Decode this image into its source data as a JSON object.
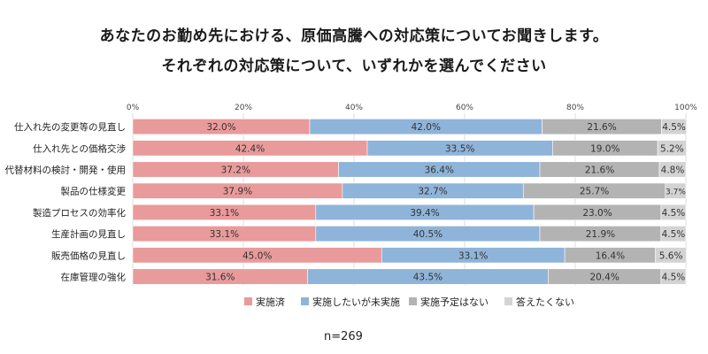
{
  "title_lines": [
    "あなたのお勤め先における、原価高騰への対応策についてお聞きします。",
    "それぞれの対応策について、いずれかを選んでください"
  ],
  "sample_size": "n=269",
  "chart_data": {
    "type": "bar",
    "orientation": "horizontal",
    "stacked": true,
    "percent_stacked": true,
    "categories": [
      "仕入れ先の変更等の見直し",
      "仕入れ先との価格交渉",
      "代替材料の検討・開発・使用",
      "製品の仕様変更",
      "製造プロセスの効率化",
      "生産計画の見直し",
      "販売価格の見直し",
      "在庫管理の強化"
    ],
    "series": [
      {
        "name": "実施済",
        "color": "#e99a9a",
        "values": [
          32.0,
          42.4,
          37.2,
          37.9,
          33.1,
          33.1,
          45.0,
          31.6
        ]
      },
      {
        "name": "実施したいが未実施",
        "color": "#8fb4d9",
        "values": [
          42.0,
          33.5,
          36.4,
          32.7,
          39.4,
          40.5,
          33.1,
          43.5
        ]
      },
      {
        "name": "実施予定はない",
        "color": "#b3b3b3",
        "values": [
          21.6,
          19.0,
          21.6,
          25.7,
          23.0,
          21.9,
          16.4,
          20.4
        ]
      },
      {
        "name": "答えたくない",
        "color": "#d3d3d3",
        "values": [
          4.5,
          5.2,
          4.8,
          3.7,
          4.5,
          4.5,
          5.6,
          4.5
        ]
      }
    ],
    "value_labels": [
      [
        "32.0%",
        "42.0%",
        "21.6%",
        "4.5%"
      ],
      [
        "42.4%",
        "33.5%",
        "19.0%",
        "5.2%"
      ],
      [
        "37.2%",
        "36.4%",
        "21.6%",
        "4.8%"
      ],
      [
        "37.9%",
        "32.7%",
        "25.7%",
        "3.7%"
      ],
      [
        "33.1%",
        "39.4%",
        "23.0%",
        "4.5%"
      ],
      [
        "33.1%",
        "40.5%",
        "21.9%",
        "4.5%"
      ],
      [
        "45.0%",
        "33.1%",
        "16.4%",
        "5.6%"
      ],
      [
        "31.6%",
        "43.5%",
        "20.4%",
        "4.5%"
      ]
    ],
    "x_ticks": [
      "0%",
      "20%",
      "40%",
      "60%",
      "80%",
      "100%"
    ],
    "xlim": [
      0,
      100
    ],
    "grid": true,
    "legend_position": "bottom"
  }
}
